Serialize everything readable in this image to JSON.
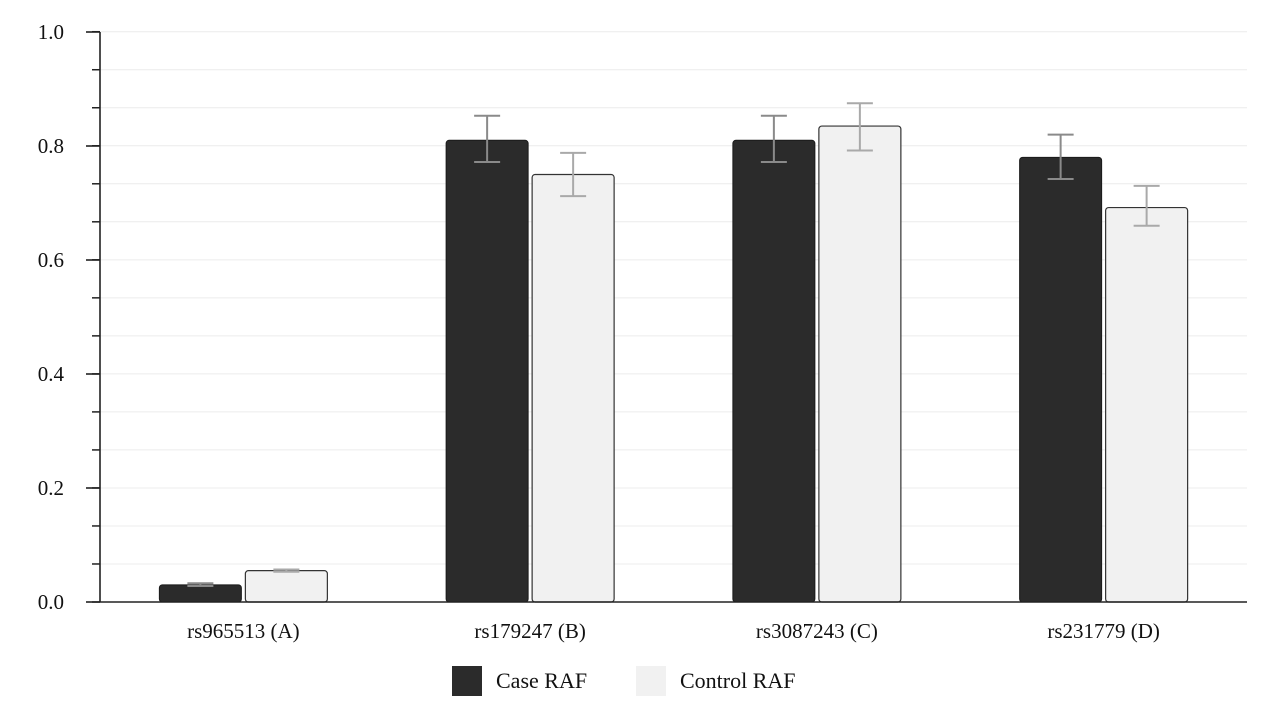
{
  "chart_data": {
    "type": "bar",
    "categories": [
      "rs965513 (A)",
      "rs179247 (B)",
      "rs3087243 (C)",
      "rs231779 (D)"
    ],
    "series": [
      {
        "name": "Case RAF",
        "color": "#2b2b2b",
        "values": [
          0.03,
          0.81,
          0.81,
          0.78
        ],
        "error_low": [
          0.028,
          0.772,
          0.772,
          0.742
        ],
        "error_high": [
          0.033,
          0.853,
          0.853,
          0.82
        ]
      },
      {
        "name": "Control RAF",
        "color": "#f1f1f1",
        "values": [
          0.055,
          0.75,
          0.835,
          0.692
        ],
        "error_low": [
          0.053,
          0.712,
          0.792,
          0.66
        ],
        "error_high": [
          0.057,
          0.788,
          0.875,
          0.73
        ]
      }
    ],
    "ylim": [
      0,
      1.0
    ],
    "yticks": [
      "0.0",
      "0.2",
      "0.4",
      "0.6",
      "0.8",
      "1.0"
    ],
    "ytick_values": [
      0,
      0.2,
      0.4,
      0.6,
      0.8,
      1.0
    ],
    "minor_tick_step": 0.0667,
    "title": "",
    "xlabel": "",
    "ylabel": "",
    "grid": true,
    "legend_position": "bottom-center"
  },
  "legend": {
    "items": [
      {
        "label": "Case RAF",
        "color": "#2b2b2b"
      },
      {
        "label": "Control RAF",
        "color": "#f1f1f1"
      }
    ]
  }
}
